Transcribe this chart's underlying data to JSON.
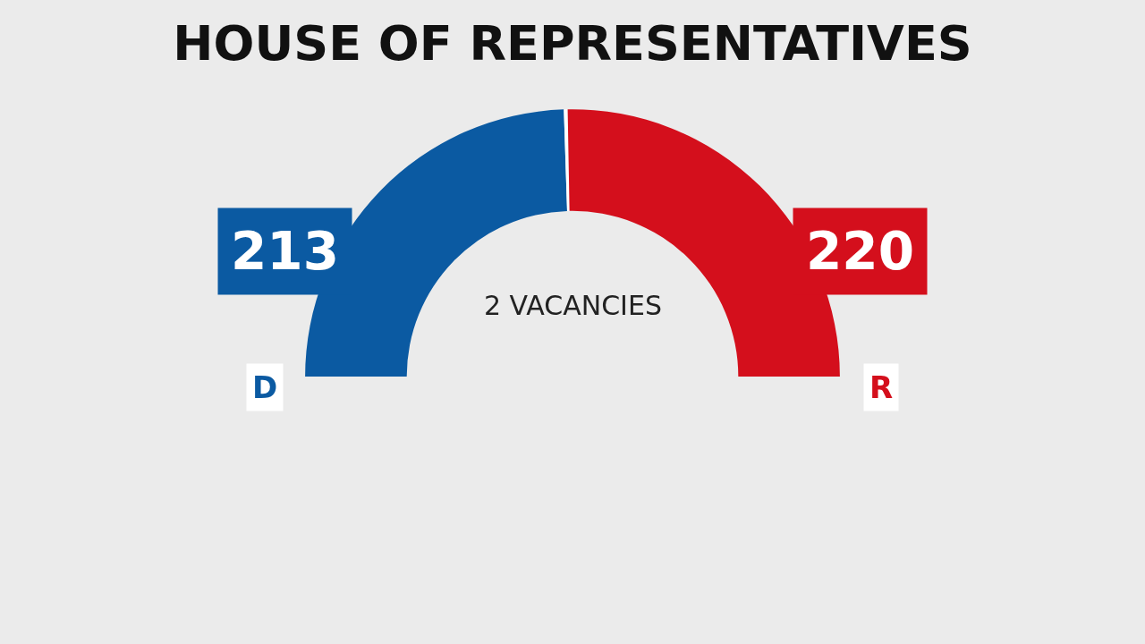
{
  "chart_data": {
    "type": "donut",
    "title": "HOUSE OF REPRESENTATIVES",
    "categories": [
      "D",
      null,
      "R"
    ],
    "values": [
      213,
      2,
      220
    ],
    "colors": [
      "#0b5aa2",
      "#ffffff",
      "#d40f1c"
    ],
    "value_labels": [
      "213",
      null,
      "220"
    ],
    "annotations": [
      "2 VACANCIES"
    ],
    "legend": false
  }
}
